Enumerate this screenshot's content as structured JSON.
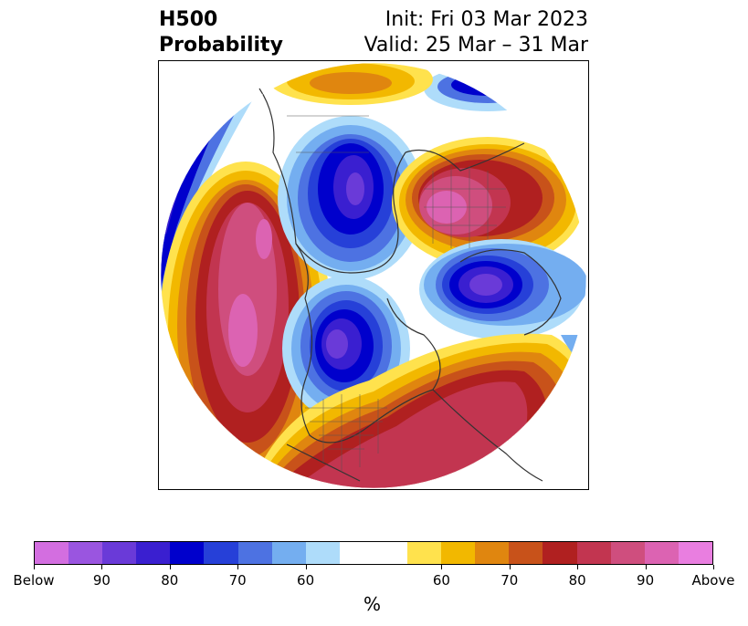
{
  "title": {
    "left_line1": "H500",
    "left_line2": "Probability",
    "right_line1": "Init: Fri 03 Mar 2023",
    "right_line2": "Valid: 25 Mar – 31 Mar"
  },
  "colorbar": {
    "unit": "%",
    "colors": [
      "#d36ee0",
      "#9a55e0",
      "#6a3ad8",
      "#3a1fd0",
      "#0000cc",
      "#2640d8",
      "#4d72e2",
      "#74aef0",
      "#aedcfa",
      "#ffffff",
      "#ffffff",
      "#ffe24d",
      "#f2b800",
      "#e0860f",
      "#c8521a",
      "#b02020",
      "#c23550",
      "#cf4e7e",
      "#dc63b2",
      "#e97ee0"
    ],
    "tick_labels": [
      "Below",
      "90",
      "80",
      "70",
      "60",
      "60",
      "70",
      "80",
      "90",
      "Above"
    ]
  },
  "map": {
    "projection": "polar stereographic (North America centred)",
    "anomaly_centers": [
      {
        "region": "Eastern Pacific / West Coast of North America",
        "category": "Above",
        "peak": "90"
      },
      {
        "region": "Hudson Bay / central Canada",
        "category": "Below",
        "peak": "90"
      },
      {
        "region": "Greenland / North Atlantic",
        "category": "Above",
        "peak": "90"
      },
      {
        "region": "Europe / Scandinavia",
        "category": "Below",
        "peak": "90"
      },
      {
        "region": "Eastern North America / Atlantic",
        "category": "Above",
        "peak": "90"
      },
      {
        "region": "Siberia / Arctic",
        "category": "Below",
        "peak": "80"
      }
    ]
  }
}
